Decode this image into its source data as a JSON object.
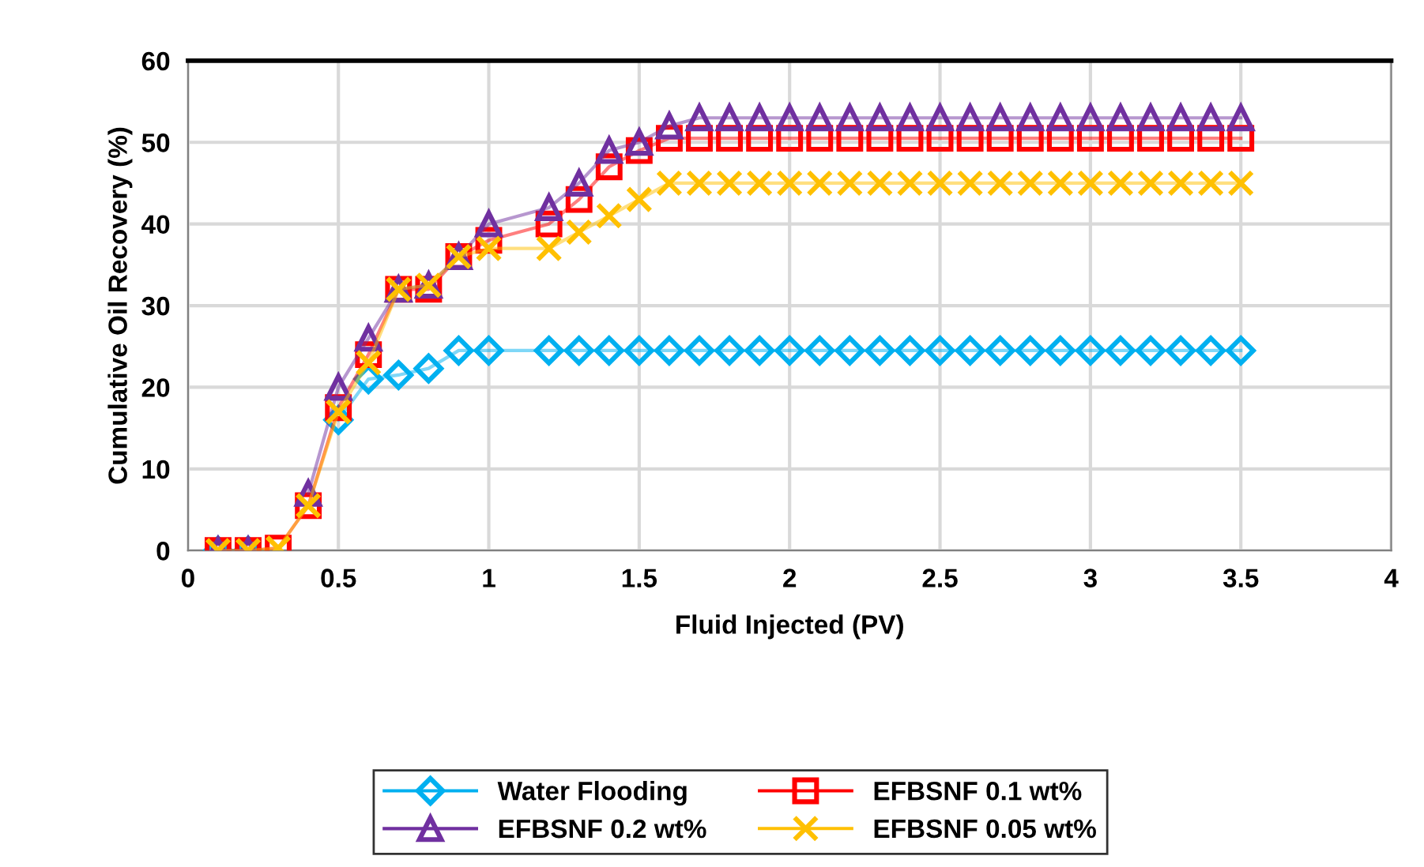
{
  "chart_data": {
    "type": "line",
    "xlabel": "Fluid Injected (PV)",
    "ylabel": "Cumulative Oil Recovery (%)",
    "x": [
      0.1,
      0.2,
      0.3,
      0.4,
      0.5,
      0.6,
      0.7,
      0.8,
      0.9,
      1.0,
      1.2,
      1.3,
      1.4,
      1.5,
      1.6,
      1.7,
      1.8,
      1.9,
      2.0,
      2.1,
      2.2,
      2.3,
      2.4,
      2.5,
      2.6,
      2.7,
      2.8,
      2.9,
      3.0,
      3.1,
      3.2,
      3.3,
      3.4,
      3.5
    ],
    "series": [
      {
        "name": "Water Flooding",
        "color": "#00b0f0",
        "marker": "diamond",
        "values": [
          0,
          0,
          null,
          null,
          16,
          21,
          21.5,
          22.3,
          24.5,
          24.5,
          24.5,
          24.5,
          24.5,
          24.5,
          24.5,
          24.5,
          24.5,
          24.5,
          24.5,
          24.5,
          24.5,
          24.5,
          24.5,
          24.5,
          24.5,
          24.5,
          24.5,
          24.5,
          24.5,
          24.5,
          24.5,
          24.5,
          24.5,
          24.5
        ]
      },
      {
        "name": "EFBSNF 0.1 wt%",
        "color": "#ff0000",
        "marker": "square",
        "values": [
          0,
          0,
          0.3,
          5.5,
          17.5,
          24,
          32,
          32,
          36,
          38,
          40,
          43,
          47,
          49,
          50.5,
          50.5,
          50.5,
          50.5,
          50.5,
          50.5,
          50.5,
          50.5,
          50.5,
          50.5,
          50.5,
          50.5,
          50.5,
          50.5,
          50.5,
          50.5,
          50.5,
          50.5,
          50.5,
          50.5
        ]
      },
      {
        "name": "EFBSNF 0.2 wt%",
        "color": "#7030a0",
        "marker": "triangle",
        "values": [
          0,
          0,
          null,
          7,
          20,
          26,
          32,
          32.5,
          36,
          40,
          42,
          45,
          49,
          50,
          52,
          53,
          53,
          53,
          53,
          53,
          53,
          53,
          53,
          53,
          53,
          53,
          53,
          53,
          53,
          53,
          53,
          53,
          53,
          53
        ]
      },
      {
        "name": "EFBSNF 0.05 wt%",
        "color": "#ffc000",
        "marker": "cross",
        "values": [
          0,
          0,
          0.3,
          5.5,
          17,
          23,
          32,
          32.5,
          36,
          37,
          37,
          39,
          41,
          43,
          45,
          45,
          45,
          45,
          45,
          45,
          45,
          45,
          45,
          45,
          45,
          45,
          45,
          45,
          45,
          45,
          45,
          45,
          45,
          45
        ]
      }
    ],
    "xlim": [
      0,
      4
    ],
    "xticks": [
      0,
      0.5,
      1,
      1.5,
      2,
      2.5,
      3,
      3.5,
      4
    ],
    "ylim": [
      0,
      60
    ],
    "yticks": [
      0,
      10,
      20,
      30,
      40,
      50,
      60
    ],
    "grid": true,
    "legend": "bottom"
  }
}
